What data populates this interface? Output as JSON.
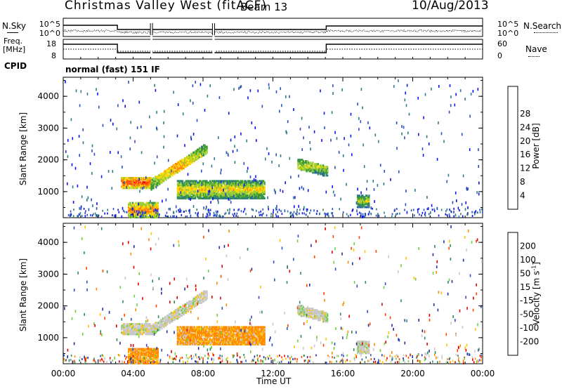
{
  "header": {
    "title": "Christmas Valley West (fitACF)",
    "beam": "Beam 13",
    "date": "10/Aug/2013"
  },
  "params": {
    "nsky_label": "N.Sky",
    "nsearch_label": "N.Search",
    "freq_label_1": "Freq.",
    "freq_label_2": "[MHz]",
    "nave_label": "Nave",
    "cpid_label": "CPID",
    "cpid_value": "normal (fast) 151 IF",
    "noise_left_ticks": [
      "10^5",
      "10^0"
    ],
    "noise_right_ticks": [
      "10^5",
      "10^0"
    ],
    "freq_ticks": [
      "18",
      "8"
    ],
    "nave_ticks": [
      "60",
      "0"
    ]
  },
  "chart_data": [
    {
      "type": "heatmap",
      "title": "",
      "xlabel": "",
      "ylabel": "Slant Range [km]",
      "xlim": [
        0,
        24
      ],
      "ylim": [
        180,
        4600
      ],
      "xticks": [
        0,
        4,
        8,
        12,
        16,
        20,
        24
      ],
      "yticks": [
        1000,
        2000,
        3000,
        4000
      ],
      "colorbar": {
        "label": "Power [dB]",
        "ticks": [
          "4",
          "8",
          "12",
          "16",
          "20",
          "24",
          "28"
        ],
        "colors": [
          "#0a14f0",
          "#2a4cc0",
          "#2e7a8a",
          "#3a9a3a",
          "#9acd32",
          "#ffd700",
          "#ff8c00",
          "#ff4500",
          "#e00000"
        ]
      },
      "regions": [
        {
          "name": "echo-a",
          "x": [
            3.3,
            5.0
          ],
          "y": [
            1100,
            1450
          ],
          "level": 0.55
        },
        {
          "name": "echo-b",
          "x": [
            5.0,
            8.2
          ],
          "y": [
            1050,
            2450
          ],
          "level": 0.35
        },
        {
          "name": "echo-c",
          "x": [
            6.5,
            11.5
          ],
          "y": [
            780,
            1350
          ],
          "level": 0.3
        },
        {
          "name": "echo-d",
          "x": [
            13.4,
            15.1
          ],
          "y": [
            1450,
            2100
          ],
          "level": 0.2
        },
        {
          "name": "echo-e",
          "x": [
            16.8,
            17.5
          ],
          "y": [
            500,
            900
          ],
          "level": 0.2
        },
        {
          "name": "echo-f",
          "x": [
            3.7,
            5.4
          ],
          "y": [
            180,
            650
          ],
          "level": 0.45
        }
      ]
    },
    {
      "type": "heatmap",
      "title": "",
      "xlabel": "Time UT",
      "ylabel": "Slant Range [km]",
      "xlim": [
        0,
        24
      ],
      "ylim": [
        180,
        4600
      ],
      "xticks": [
        0,
        4,
        8,
        12,
        16,
        20,
        24
      ],
      "xticklabels": [
        "00:00",
        "04:00",
        "08:00",
        "12:00",
        "16:00",
        "20:00",
        "00:00"
      ],
      "yticks": [
        1000,
        2000,
        3000,
        4000
      ],
      "colorbar": {
        "label": "Velocity [m s-1]",
        "ticks": [
          "200",
          "100",
          "50",
          "15",
          "-15",
          "-50",
          "-100",
          "-200"
        ],
        "colors": [
          "#1e2fa0",
          "#2e4ec8",
          "#2e8b57",
          "#6fcf3f",
          "#c8c8c8",
          "#ffc400",
          "#ff8c00",
          "#ff4500",
          "#e00000"
        ]
      },
      "regions": [
        {
          "name": "echo-a",
          "x": [
            3.3,
            5.0
          ],
          "y": [
            1100,
            1450
          ],
          "tone": "grey"
        },
        {
          "name": "echo-b",
          "x": [
            5.0,
            8.2
          ],
          "y": [
            1050,
            2450
          ],
          "tone": "grey"
        },
        {
          "name": "echo-c",
          "x": [
            6.5,
            11.5
          ],
          "y": [
            780,
            1350
          ],
          "tone": "orange"
        },
        {
          "name": "echo-d",
          "x": [
            13.4,
            15.1
          ],
          "y": [
            1450,
            2100
          ],
          "tone": "grey"
        },
        {
          "name": "echo-e",
          "x": [
            16.8,
            17.5
          ],
          "y": [
            500,
            900
          ],
          "tone": "grey"
        },
        {
          "name": "echo-f",
          "x": [
            3.7,
            5.4
          ],
          "y": [
            180,
            650
          ],
          "tone": "orange"
        }
      ]
    }
  ]
}
